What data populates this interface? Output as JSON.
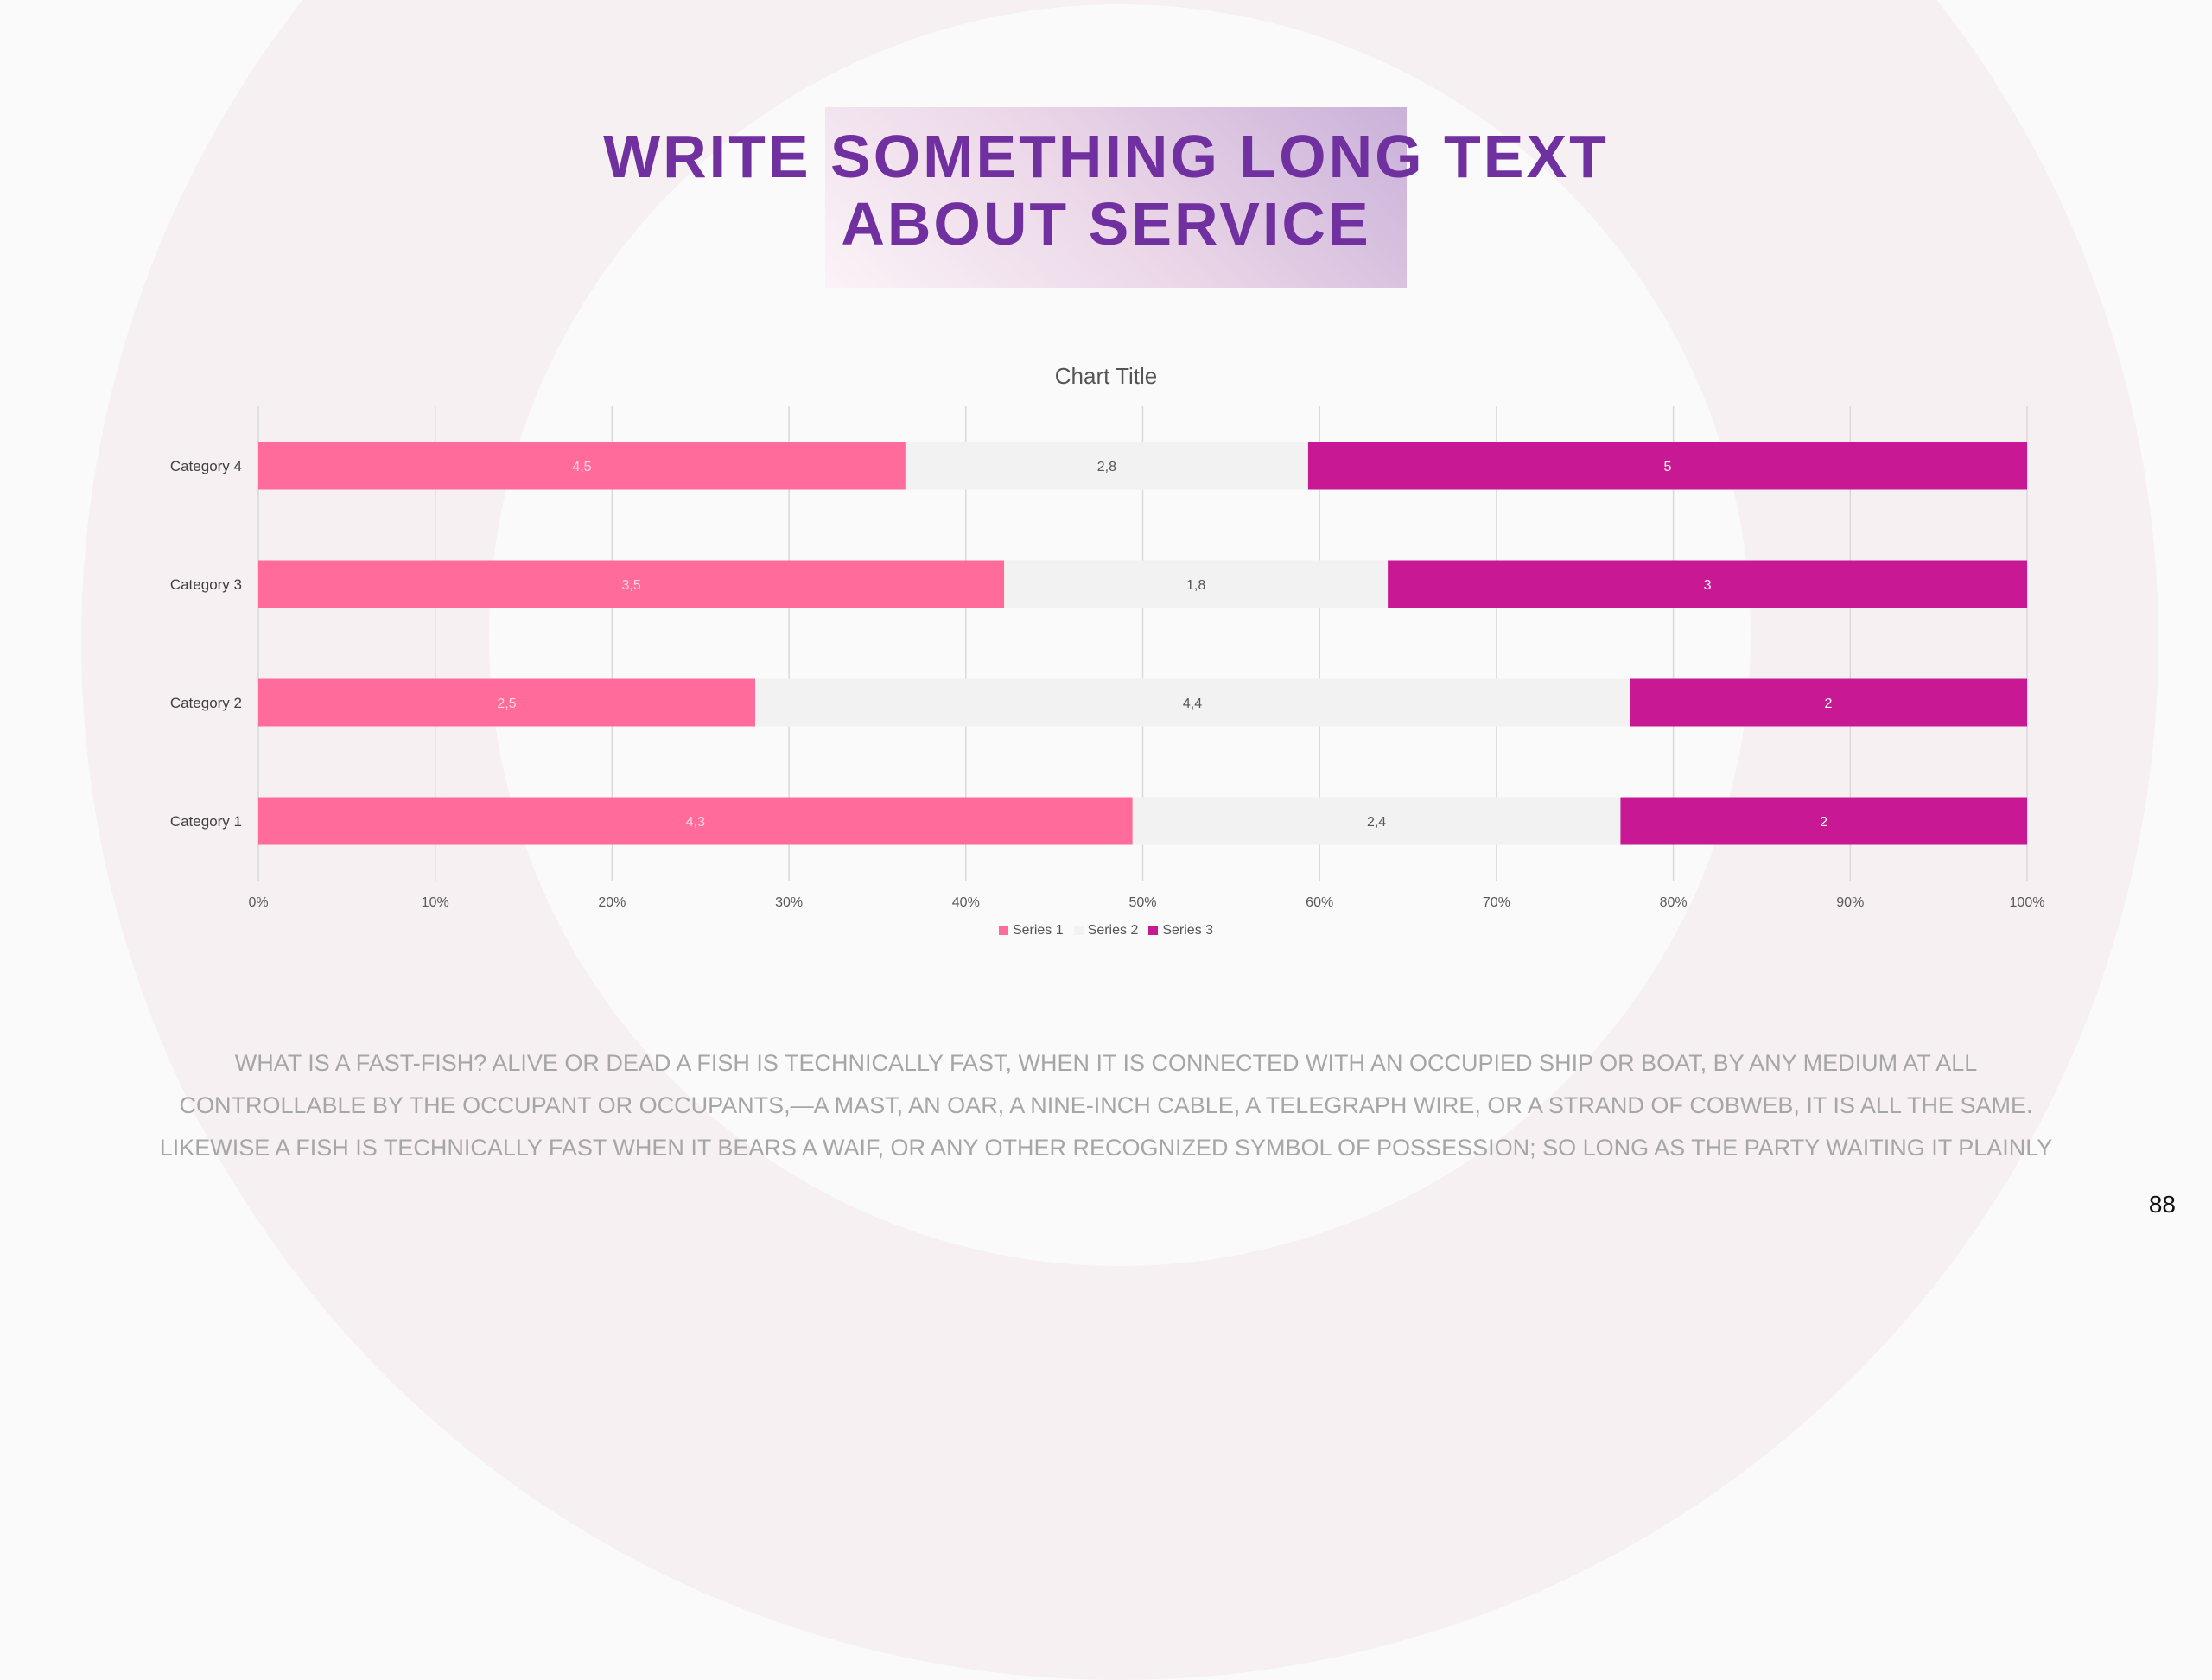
{
  "title_lines": [
    "WRITE SOMETHING LONG TEXT",
    "ABOUT SERVICE"
  ],
  "body_text": "WHAT IS A FAST-FISH? ALIVE OR DEAD A FISH IS TECHNICALLY FAST, WHEN IT IS CONNECTED WITH AN OCCUPIED SHIP OR BOAT, BY ANY MEDIUM AT ALL CONTROLLABLE BY THE OCCUPANT OR OCCUPANTS,—A MAST, AN OAR, A NINE-INCH CABLE, A TELEGRAPH WIRE, OR A STRAND OF COBWEB, IT IS ALL THE SAME. LIKEWISE A FISH IS TECHNICALLY FAST WHEN IT BEARS A WAIF, OR ANY OTHER RECOGNIZED SYMBOL OF POSSESSION; SO LONG AS THE PARTY WAITING IT PLAINLY",
  "page_number": "88",
  "chart_data": {
    "type": "bar",
    "orientation": "horizontal",
    "stacking": "percent",
    "title": "Chart Title",
    "categories": [
      "Category 1",
      "Category 2",
      "Category 3",
      "Category 4"
    ],
    "series": [
      {
        "name": "Series 1",
        "values": [
          4.3,
          2.5,
          3.5,
          4.5
        ],
        "labels": [
          "4,3",
          "2,5",
          "3,5",
          "4,5"
        ],
        "color": "#ff6b9a",
        "label_color": "#ffd6e3"
      },
      {
        "name": "Series 2",
        "values": [
          2.4,
          4.4,
          1.8,
          2.8
        ],
        "labels": [
          "2,4",
          "4,4",
          "1,8",
          "2,8"
        ],
        "color": "#f2f2f2",
        "label_color": "#555555"
      },
      {
        "name": "Series 3",
        "values": [
          2,
          2,
          3,
          5
        ],
        "labels": [
          "2",
          "2",
          "3",
          "5"
        ],
        "color": "#c81894",
        "label_color": "#ffffff"
      }
    ],
    "xticks": [
      "0%",
      "10%",
      "20%",
      "30%",
      "40%",
      "50%",
      "60%",
      "70%",
      "80%",
      "90%",
      "100%"
    ],
    "xlim": [
      0,
      100
    ],
    "grid": true,
    "legend": "bottom"
  }
}
